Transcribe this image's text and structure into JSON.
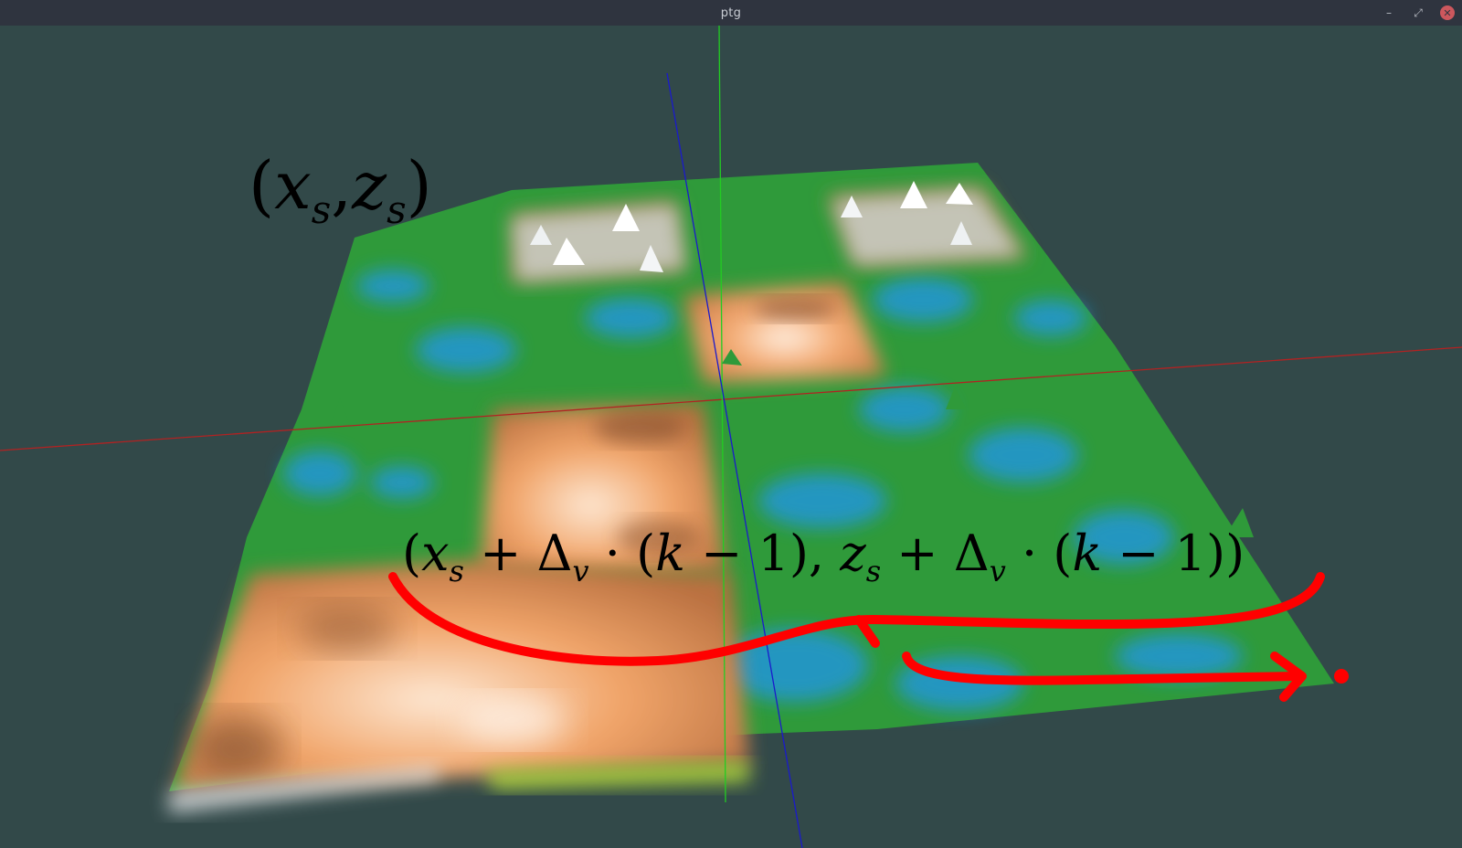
{
  "window": {
    "title": "ptg",
    "minimize_icon": "minimize-icon",
    "restore_icon": "restore-icon",
    "close_icon": "close-icon"
  },
  "scene": {
    "background_color": "#324949",
    "axis_colors": {
      "x": "#b22222",
      "y": "#22cc22",
      "z": "#1a1acc"
    },
    "terrain_colors": {
      "grass": "#2f9a3a",
      "water": "#2496d8",
      "sand": "#f2a970",
      "snow": "#e8ecef",
      "rock": "#8a7a3a"
    }
  },
  "annotations": {
    "label_start": {
      "open": "(",
      "x": "x",
      "x_sub": "s",
      "sep": ",",
      "z": "z",
      "z_sub": "s",
      "close": ")"
    },
    "label_end": {
      "p1": "(",
      "x": "x",
      "x_sub": "s",
      "op1": " + Δ",
      "v1": "v",
      "mid1": " · (",
      "k1": "k",
      "tail1": " − 1), ",
      "z": "z",
      "z_sub": "s",
      "op2": " + Δ",
      "v2": "v",
      "mid2": " · (",
      "k2": "k",
      "tail2": " − 1))"
    },
    "ink_color": "#ff0000"
  }
}
